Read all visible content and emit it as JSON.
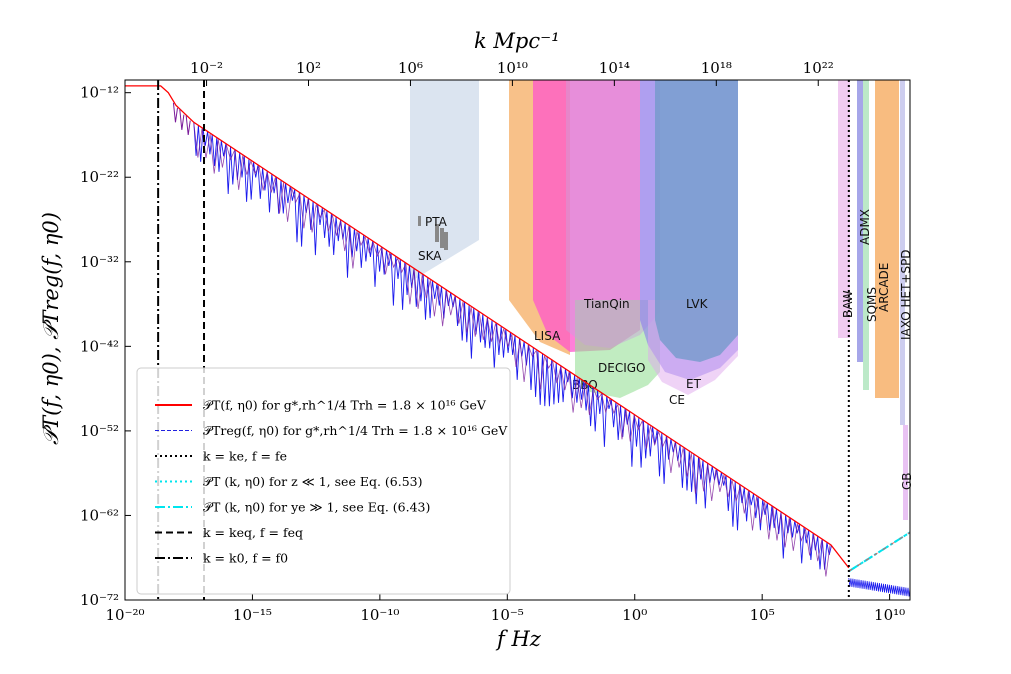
{
  "chart_data": {
    "type": "line",
    "xlabel": "f Hz",
    "ylabel": "𝒫T(f, η0), 𝒫Treg(f, η0)",
    "top_xlabel": "k Mpc⁻¹",
    "x_scale": "log",
    "y_scale": "log",
    "xlim_log10": [
      -20,
      10.8
    ],
    "ylim_log10": [
      -72,
      -10.5
    ],
    "x_ticks": [
      "10⁻²⁰",
      "10⁻¹⁵",
      "10⁻¹⁰",
      "10⁻⁵",
      "10⁰",
      "10⁵",
      "10¹⁰"
    ],
    "y_ticks": [
      "10⁻¹²",
      "10⁻²²",
      "10⁻³²",
      "10⁻⁴²",
      "10⁻⁵²",
      "10⁻⁶²",
      "10⁻⁷²"
    ],
    "top_x_ticks": [
      "10⁻²",
      "10²",
      "10⁶",
      "10¹⁰",
      "10¹⁴",
      "10¹⁸",
      "10²²"
    ],
    "series": [
      {
        "name": "𝒫T(f,η0) for g*,rh^1/4 Trh = 1.8 × 10¹⁶ GeV",
        "color": "#ff0000",
        "log10_x": [
          -20,
          -18.6,
          -18.3,
          -18.0,
          -17.3,
          7.7,
          8.4
        ],
        "log10_y": [
          -11.2,
          -11.2,
          -12.0,
          -13.5,
          -15.5,
          -65.5,
          -68.2
        ]
      },
      {
        "name": "𝒫Treg(f,η0) for g*,rh^1/4 Trh = 1.8 × 10¹⁶ GeV",
        "color": "#1a1aee",
        "log10_x": [
          -17.3,
          7.7,
          8.4,
          10.8
        ],
        "log10_y": [
          -15.5,
          -65.5,
          -68.5,
          -70.8
        ]
      },
      {
        "name": "k = ke, f = fe",
        "color": "#000000",
        "log10_x": [
          8.4,
          8.4
        ],
        "log10_y": [
          -72,
          -10.5
        ]
      },
      {
        "name": "𝒫T(k,η0) for z ≪ 1, see Eq. (6.53)",
        "color": "#00e5ee",
        "log10_x": [
          8.4,
          10.8
        ],
        "log10_y": [
          -68.6,
          -64.0
        ]
      },
      {
        "name": "𝒫T(k,η0) for ye ≫ 1, see Eq. (6.43)",
        "color": "#00e5ee",
        "log10_x": [
          8.4,
          10.8
        ],
        "log10_y": [
          -68.6,
          -64.0
        ]
      },
      {
        "name": "k = keq, f = feq",
        "color": "#000000",
        "log10_x": [
          -16.9,
          -16.9
        ],
        "log10_y": [
          -72,
          -10.5
        ]
      },
      {
        "name": "k = k0, f = f0",
        "color": "#000000",
        "log10_x": [
          -18.7,
          -18.7
        ],
        "log10_y": [
          -72,
          -10.5
        ]
      }
    ],
    "detectors": [
      {
        "name": "PTA",
        "color": "#888888"
      },
      {
        "name": "SKA",
        "color": "#b0c4de"
      },
      {
        "name": "LISA",
        "color": "#f5a04a"
      },
      {
        "name": "TianQin",
        "color": "#ff55cc"
      },
      {
        "name": "DECIGO",
        "color": "#98e098"
      },
      {
        "name": "BBO",
        "color": "#c9a0dc"
      },
      {
        "name": "LVK",
        "color": "#6f99c8"
      },
      {
        "name": "ET",
        "color": "#8a7cf0"
      },
      {
        "name": "CE",
        "color": "#e0a8ee"
      },
      {
        "name": "BAW",
        "color": "#e6a0e6"
      },
      {
        "name": "ADMX",
        "color": "#8080e0"
      },
      {
        "name": "SQMS",
        "color": "#a0e0b0"
      },
      {
        "name": "ARCADE",
        "color": "#f5a04a"
      },
      {
        "name": "IAXO HET+SPD",
        "color": "#b8b8e8"
      },
      {
        "name": "GB",
        "color": "#e0a8ee"
      }
    ],
    "legend": "lower-left"
  },
  "legend_entries": [
    {
      "label": "𝒫T(f, η0) for g*,rh^1/4 Trh = 1.8 × 10¹⁶ GeV",
      "color": "#ff0000",
      "dash": ""
    },
    {
      "label": "𝒫Treg(f, η0) for g*,rh^1/4 Trh = 1.8 × 10¹⁶ GeV",
      "color": "#2020e0",
      "dash": "4,2"
    },
    {
      "label": "k = ke, f = fe",
      "color": "#000000",
      "dash": "2,3"
    },
    {
      "label": "𝒫T (k, η0) for z ≪ 1, see Eq. (6.53)",
      "color": "#00e5ee",
      "dash": "2,3"
    },
    {
      "label": "𝒫T (k, η0) for ye ≫ 1, see Eq. (6.43)",
      "color": "#00e5ee",
      "dash": "10,3,2,3"
    },
    {
      "label": "k = keq, f = feq",
      "color": "#000000",
      "dash": "7,4"
    },
    {
      "label": "k = k0, f = f0",
      "color": "#000000",
      "dash": "10,3,2,3"
    }
  ]
}
